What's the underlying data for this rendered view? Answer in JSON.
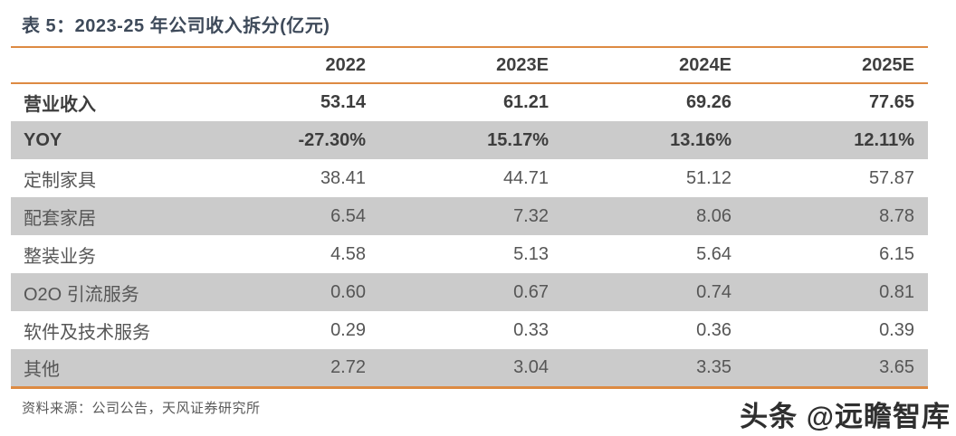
{
  "title": "表 5：2023-25 年公司收入拆分(亿元)",
  "table": {
    "columns": [
      "",
      "2022",
      "2023E",
      "2024E",
      "2025E"
    ],
    "rows": [
      {
        "label": "营业收入",
        "values": [
          "53.14",
          "61.21",
          "69.26",
          "77.65"
        ]
      },
      {
        "label": "YOY",
        "values": [
          "-27.30%",
          "15.17%",
          "13.16%",
          "12.11%"
        ]
      },
      {
        "label": "定制家具",
        "values": [
          "38.41",
          "44.71",
          "51.12",
          "57.87"
        ]
      },
      {
        "label": "配套家居",
        "values": [
          "6.54",
          "7.32",
          "8.06",
          "8.78"
        ]
      },
      {
        "label": "整装业务",
        "values": [
          "4.58",
          "5.13",
          "5.64",
          "6.15"
        ]
      },
      {
        "label": "O2O 引流服务",
        "values": [
          "0.60",
          "0.67",
          "0.74",
          "0.81"
        ]
      },
      {
        "label": "软件及技术服务",
        "values": [
          "0.29",
          "0.33",
          "0.36",
          "0.39"
        ]
      },
      {
        "label": "其他",
        "values": [
          "2.72",
          "3.04",
          "3.35",
          "3.65"
        ]
      }
    ]
  },
  "footer": {
    "source": "资料来源：公司公告，天风证券研究所"
  },
  "watermark": "头条 @远瞻智库",
  "colors": {
    "accent_orange": "#dd8a42",
    "row_shade": "#cbcbcb",
    "title_text": "#3e4a5a",
    "body_text": "#565656",
    "bold_text": "#3d3d3d",
    "footer_text": "#595959"
  }
}
